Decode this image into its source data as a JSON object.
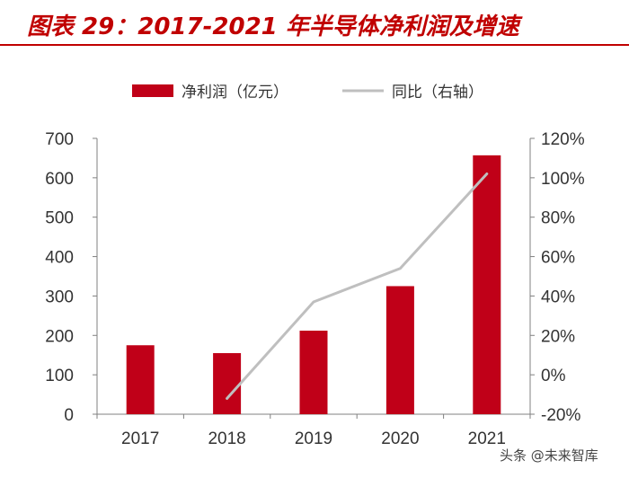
{
  "title": "图表 29：2017-2021 年半导体净利润及增速",
  "watermark": "头条 @未来智库",
  "colors": {
    "accent": "#c00000",
    "bar": "#c00018",
    "line": "#bfbfbf"
  },
  "chart_data": {
    "type": "bar",
    "categories": [
      "2017",
      "2018",
      "2019",
      "2020",
      "2021"
    ],
    "series": [
      {
        "name": "净利润（亿元）",
        "type": "bar",
        "axis": "left",
        "values": [
          175,
          155,
          212,
          325,
          657
        ]
      },
      {
        "name": "同比（右轴）",
        "type": "line",
        "axis": "right",
        "values": [
          null,
          -12,
          37,
          54,
          102
        ]
      }
    ],
    "ylim": [
      0,
      700
    ],
    "y_ticks": [
      "0",
      "100",
      "200",
      "300",
      "400",
      "500",
      "600",
      "700"
    ],
    "y2lim": [
      -20,
      120
    ],
    "y2_ticks": [
      "-20%",
      "0%",
      "20%",
      "40%",
      "60%",
      "80%",
      "100%",
      "120%"
    ],
    "grid": false,
    "legend_position": "top"
  }
}
